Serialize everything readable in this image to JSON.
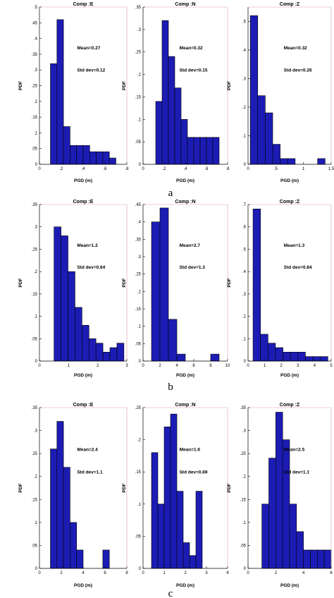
{
  "panels": [
    {
      "label": "a"
    },
    {
      "label": "b"
    },
    {
      "label": "c"
    }
  ],
  "chart_data": [
    {
      "panel": "a",
      "type": "bar",
      "title": "Comp :E",
      "xlabel": "PGD (m)",
      "ylabel": "PDF",
      "xlim": [
        0,
        0.8
      ],
      "ylim": [
        0,
        0.5
      ],
      "xticks": [
        0,
        0.2,
        0.4,
        0.6,
        0.8
      ],
      "yticks": [
        0,
        0.05,
        0.1,
        0.15,
        0.2,
        0.25,
        0.3,
        0.35,
        0.4,
        0.45,
        0.5
      ],
      "bin_edges": [
        0.1,
        0.16,
        0.22,
        0.28,
        0.34,
        0.4,
        0.46,
        0.52,
        0.58,
        0.64,
        0.7
      ],
      "values": [
        0.32,
        0.46,
        0.12,
        0.06,
        0.06,
        0.06,
        0.04,
        0.04,
        0.04,
        0.02
      ],
      "annotations": {
        "mean": "Mean=0.27",
        "std": "Std dev=0.12"
      }
    },
    {
      "panel": "a",
      "type": "bar",
      "title": "Comp :N",
      "xlabel": "PGD (m)",
      "ylabel": "PDF",
      "xlim": [
        0,
        0.8
      ],
      "ylim": [
        0,
        0.35
      ],
      "xticks": [
        0,
        0.2,
        0.4,
        0.6,
        0.8
      ],
      "yticks": [
        0,
        0.05,
        0.1,
        0.15,
        0.2,
        0.25,
        0.3,
        0.35
      ],
      "bin_edges": [
        0.12,
        0.18,
        0.24,
        0.3,
        0.36,
        0.42,
        0.48,
        0.54,
        0.6,
        0.66,
        0.72
      ],
      "values": [
        0.14,
        0.32,
        0.24,
        0.17,
        0.1,
        0.06,
        0.06,
        0.06,
        0.06,
        0.06
      ],
      "annotations": {
        "mean": "Mean=0.32",
        "std": "Std dev=0.15"
      }
    },
    {
      "panel": "a",
      "type": "bar",
      "title": "Comp :Z",
      "xlabel": "PGD (m)",
      "ylabel": "PDF",
      "xlim": [
        0,
        1.5
      ],
      "ylim": [
        0,
        0.55
      ],
      "xticks": [
        0,
        0.5,
        1,
        1.5
      ],
      "yticks": [
        0,
        0.1,
        0.2,
        0.3,
        0.4,
        0.5
      ],
      "bin_edges": [
        0.04,
        0.175,
        0.31,
        0.445,
        0.58,
        0.715,
        0.85,
        0.985,
        1.12,
        1.255,
        1.39
      ],
      "values": [
        0.52,
        0.24,
        0.18,
        0.07,
        0.02,
        0.02,
        0.0,
        0.0,
        0.0,
        0.02
      ],
      "annotations": {
        "mean": "Mean=0.32",
        "std": "Std dev=0.26"
      }
    },
    {
      "panel": "b",
      "type": "bar",
      "title": "Comp :E",
      "xlabel": "PGD (m)",
      "ylabel": "PDF",
      "xlim": [
        0,
        3
      ],
      "ylim": [
        0,
        0.35
      ],
      "xticks": [
        0,
        1,
        2,
        3
      ],
      "yticks": [
        0,
        0.05,
        0.1,
        0.15,
        0.2,
        0.25,
        0.3,
        0.35
      ],
      "bin_edges": [
        0.5,
        0.74,
        0.98,
        1.22,
        1.46,
        1.7,
        1.94,
        2.18,
        2.42,
        2.66,
        2.9
      ],
      "values": [
        0.3,
        0.28,
        0.2,
        0.12,
        0.08,
        0.05,
        0.04,
        0.02,
        0.03,
        0.04
      ],
      "annotations": {
        "mean": "Mean=1.2",
        "std": "Std dev=0.64"
      }
    },
    {
      "panel": "b",
      "type": "bar",
      "title": "Comp :N",
      "xlabel": "PGD (m)",
      "ylabel": "PDF",
      "xlim": [
        0,
        10
      ],
      "ylim": [
        0,
        0.45
      ],
      "xticks": [
        0,
        2,
        4,
        6,
        8,
        10
      ],
      "yticks": [
        0,
        0.05,
        0.1,
        0.15,
        0.2,
        0.25,
        0.3,
        0.35,
        0.4,
        0.45
      ],
      "bin_edges": [
        1.0,
        2.0,
        3.0,
        4.0,
        5.0,
        6.0,
        7.0,
        8.0,
        9.0
      ],
      "values": [
        0.4,
        0.44,
        0.12,
        0.02,
        0.0,
        0.0,
        0.0,
        0.02
      ],
      "annotations": {
        "mean": "Mean=2.7",
        "std": "Std dev=1.3"
      }
    },
    {
      "panel": "b",
      "type": "bar",
      "title": "Comp :Z",
      "xlabel": "PGD (m)",
      "ylabel": "PDF",
      "xlim": [
        0,
        5
      ],
      "ylim": [
        0,
        0.7
      ],
      "xticks": [
        0,
        1,
        2,
        3,
        4,
        5
      ],
      "yticks": [
        0,
        0.1,
        0.2,
        0.3,
        0.4,
        0.5,
        0.6,
        0.7
      ],
      "bin_edges": [
        0.3,
        0.75,
        1.2,
        1.65,
        2.1,
        2.55,
        3.0,
        3.45,
        3.9,
        4.35,
        4.8
      ],
      "values": [
        0.68,
        0.12,
        0.08,
        0.06,
        0.04,
        0.04,
        0.04,
        0.02,
        0.02,
        0.02
      ],
      "annotations": {
        "mean": "Mean=1.3",
        "std": "Std dev=0.84"
      }
    },
    {
      "panel": "c",
      "type": "bar",
      "title": "Comp :E",
      "xlabel": "PGD (m)",
      "ylabel": "PDF",
      "xlim": [
        0,
        8
      ],
      "ylim": [
        0,
        0.35
      ],
      "xticks": [
        0,
        2,
        4,
        6,
        8
      ],
      "yticks": [
        0,
        0.05,
        0.1,
        0.15,
        0.2,
        0.25,
        0.3,
        0.35
      ],
      "bin_edges": [
        1.0,
        1.6,
        2.2,
        2.8,
        3.4,
        4.0,
        4.6,
        5.2,
        5.8,
        6.4
      ],
      "values": [
        0.26,
        0.32,
        0.22,
        0.1,
        0.04,
        0.0,
        0.0,
        0.0,
        0.04
      ],
      "annotations": {
        "mean": "Mean=2.4",
        "std": "Std dev=1.1"
      }
    },
    {
      "panel": "c",
      "type": "bar",
      "title": "Comp :N",
      "xlabel": "PGD (m)",
      "ylabel": "PDF",
      "xlim": [
        0,
        4
      ],
      "ylim": [
        0,
        0.25
      ],
      "xticks": [
        0,
        1,
        2,
        3,
        4
      ],
      "yticks": [
        0,
        0.05,
        0.1,
        0.15,
        0.2,
        0.25
      ],
      "bin_edges": [
        0.4,
        0.7,
        1.0,
        1.3,
        1.6,
        1.9,
        2.2,
        2.5,
        2.8,
        3.1
      ],
      "values": [
        0.18,
        0.1,
        0.22,
        0.24,
        0.12,
        0.04,
        0.02,
        0.12,
        0.0
      ],
      "annotations": {
        "mean": "Mean=1.6",
        "std": "Std dev=0.69"
      }
    },
    {
      "panel": "c",
      "type": "bar",
      "title": "Comp :Z",
      "xlabel": "PGD (m)",
      "ylabel": "PDF",
      "xlim": [
        0,
        6
      ],
      "ylim": [
        0,
        0.35
      ],
      "xticks": [
        0,
        2,
        4,
        6
      ],
      "yticks": [
        0,
        0.05,
        0.1,
        0.15,
        0.2,
        0.25,
        0.3,
        0.35
      ],
      "bin_edges": [
        1.0,
        1.5,
        2.0,
        2.5,
        3.0,
        3.5,
        4.0,
        4.5,
        5.0,
        5.5,
        6.0
      ],
      "values": [
        0.14,
        0.24,
        0.34,
        0.28,
        0.14,
        0.08,
        0.04,
        0.04,
        0.04,
        0.04
      ],
      "annotations": {
        "mean": "Mean=2.5",
        "std": "Std dev=1.1"
      }
    }
  ]
}
